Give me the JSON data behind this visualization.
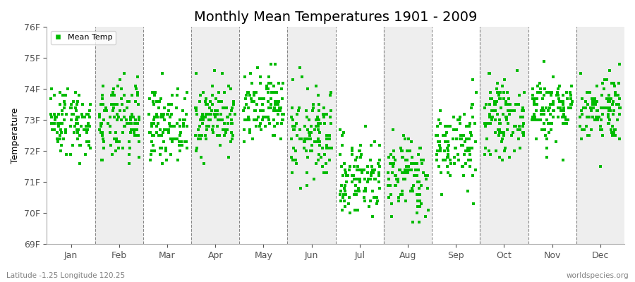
{
  "title": "Monthly Mean Temperatures 1901 - 2009",
  "ylabel": "Temperature",
  "xlabel_bottom_left": "Latitude -1.25 Longitude 120.25",
  "xlabel_bottom_right": "worldspecies.org",
  "months": [
    "Jan",
    "Feb",
    "Mar",
    "Apr",
    "May",
    "Jun",
    "Jul",
    "Aug",
    "Sep",
    "Oct",
    "Nov",
    "Dec"
  ],
  "ylim": [
    69,
    76
  ],
  "yticks": [
    69,
    70,
    71,
    72,
    73,
    74,
    75,
    76
  ],
  "ytick_labels": [
    "69F",
    "70F",
    "71F",
    "72F",
    "73F",
    "74F",
    "75F",
    "76F"
  ],
  "dot_color": "#00BB00",
  "dot_size": 6,
  "n_years": 109,
  "seed": 42,
  "month_means": [
    73.0,
    72.9,
    72.85,
    73.1,
    73.3,
    72.5,
    71.15,
    71.2,
    72.2,
    73.05,
    73.4,
    73.4
  ],
  "month_stds": [
    0.55,
    0.65,
    0.55,
    0.55,
    0.6,
    0.75,
    0.65,
    0.65,
    0.65,
    0.55,
    0.55,
    0.55
  ],
  "bg_colors": [
    "#ffffff",
    "#eeeeee"
  ],
  "legend_label": "Mean Temp",
  "title_fontsize": 14,
  "axis_fontsize": 9,
  "tick_fontsize": 9,
  "grid_color": "#888888"
}
